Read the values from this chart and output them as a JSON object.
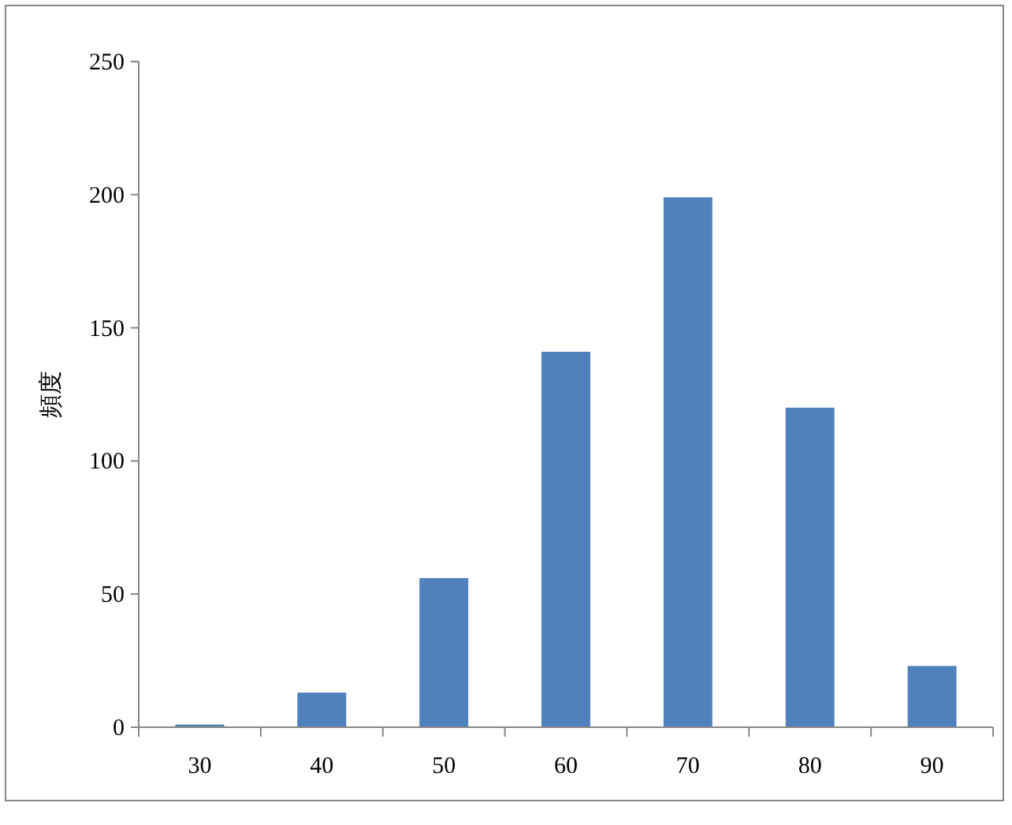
{
  "chart_data": {
    "type": "bar",
    "ylabel": "頻度",
    "categories": [
      "30",
      "40",
      "50",
      "60",
      "70",
      "80",
      "90"
    ],
    "values": [
      1,
      13,
      56,
      141,
      199,
      120,
      23
    ],
    "color": "#4f81bd",
    "ylim": [
      0,
      250
    ],
    "yticks": [
      0,
      50,
      100,
      150,
      200,
      250
    ],
    "grid": false,
    "legend": false
  }
}
